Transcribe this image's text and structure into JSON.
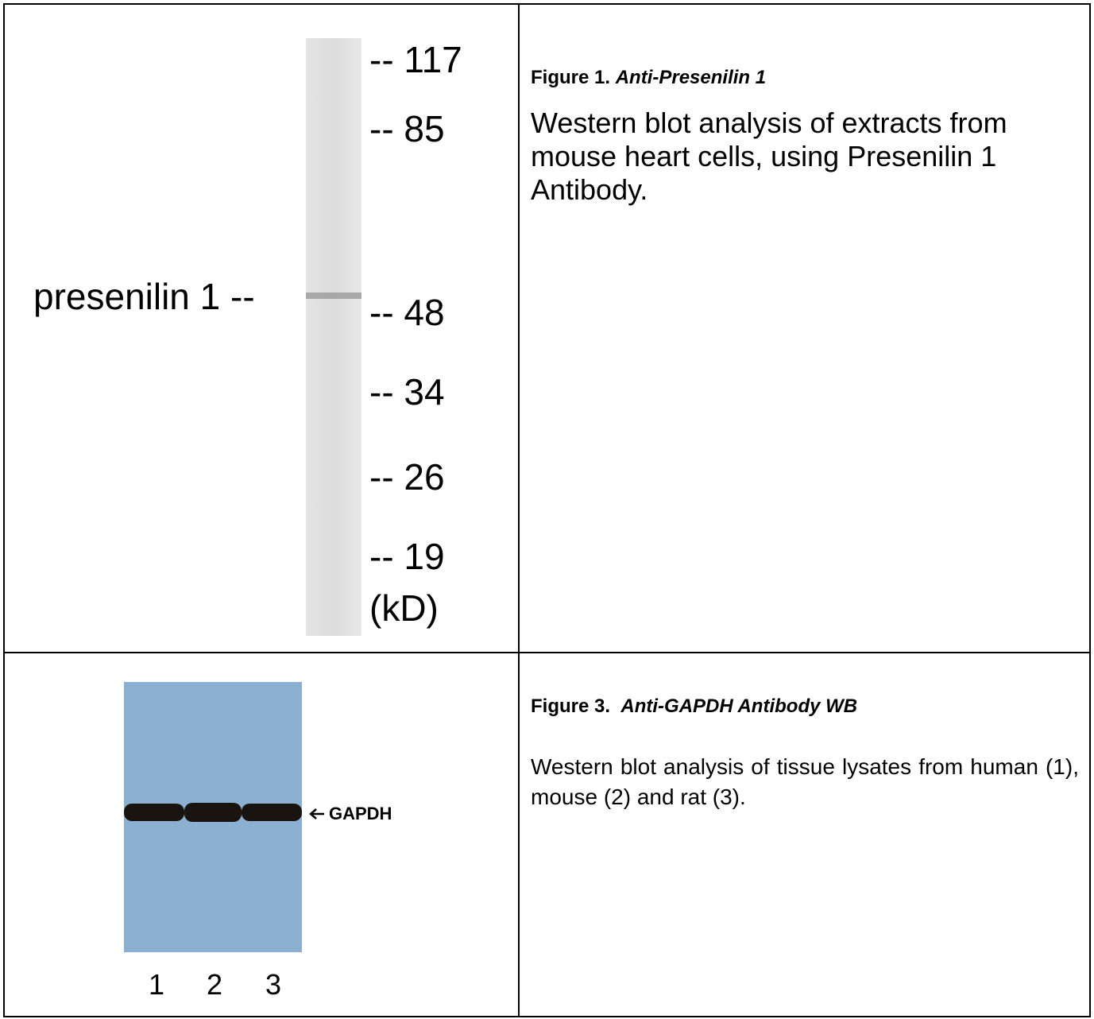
{
  "figure1": {
    "band_label": "presenilin 1 --",
    "markers": [
      "-- 117",
      "-- 85",
      "-- 48",
      "-- 34",
      "-- 26",
      "-- 19",
      "(kD)"
    ],
    "caption_label": "Figure 1.",
    "caption_title": "Anti-Presenilin 1",
    "description": "Western blot analysis of extracts from mouse heart cells, using Presenilin 1 Antibody."
  },
  "figure3": {
    "band_label": "GAPDH",
    "lanes": [
      "1",
      "2",
      "3"
    ],
    "caption_label": "Figure 3.",
    "caption_title": "Anti-GAPDH Antibody WB",
    "description": "Western blot analysis of tissue lysates from human (1), mouse (2) and rat (3)."
  }
}
